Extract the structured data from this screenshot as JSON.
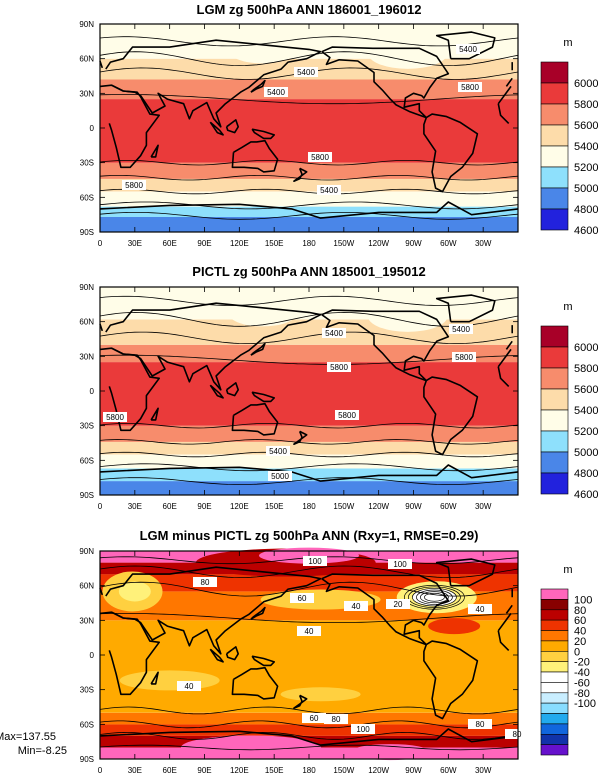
{
  "chart_data": [
    {
      "type": "heatmap",
      "title": "LGM zg 500hPa ANN 186001_196012",
      "xticks": [
        "0",
        "30E",
        "60E",
        "90E",
        "120E",
        "150E",
        "180",
        "150W",
        "120W",
        "90W",
        "60W",
        "30W"
      ],
      "yticks": [
        "90N",
        "60N",
        "30N",
        "0",
        "30S",
        "60S",
        "90S"
      ],
      "colorbar": {
        "unit": "m",
        "labels": [
          "6000",
          "5800",
          "5600",
          "5400",
          "5200",
          "5000",
          "4800",
          "4600"
        ]
      },
      "contour_labels": [
        "5400",
        "5400",
        "5800",
        "5800",
        "5800",
        "5400",
        "5400"
      ],
      "bands": [
        {
          "from": -90,
          "to": -77,
          "level": "4900-5000"
        },
        {
          "from": -77,
          "to": -68,
          "level": "5000-5200"
        },
        {
          "from": -68,
          "to": -55,
          "level": "5200-5400"
        },
        {
          "from": -55,
          "to": -44,
          "level": "5400-5600"
        },
        {
          "from": -44,
          "to": -30,
          "level": "5600-5800"
        },
        {
          "from": -30,
          "to": 25,
          "level": "5800-6000"
        },
        {
          "from": 25,
          "to": 42,
          "level": "5600-5800"
        },
        {
          "from": 42,
          "to": 60,
          "level": "5400-5600"
        },
        {
          "from": 60,
          "to": 90,
          "level": "5200-5400"
        }
      ]
    },
    {
      "type": "heatmap",
      "title": "PICTL zg 500hPa ANN 185001_195012",
      "xticks": [
        "0",
        "30E",
        "60E",
        "90E",
        "120E",
        "150E",
        "180",
        "150W",
        "120W",
        "90W",
        "60W",
        "30W"
      ],
      "yticks": [
        "90N",
        "60N",
        "30N",
        "0",
        "30S",
        "60S",
        "90S"
      ],
      "colorbar": {
        "unit": "m",
        "labels": [
          "6000",
          "5800",
          "5600",
          "5400",
          "5200",
          "5000",
          "4800",
          "4600"
        ]
      },
      "contour_labels": [
        "5400",
        "5400",
        "5800",
        "5800",
        "5800",
        "5800",
        "5400",
        "5000"
      ],
      "bands": [
        {
          "from": -90,
          "to": -78,
          "level": "4800-5000"
        },
        {
          "from": -78,
          "to": -67,
          "level": "5000-5200"
        },
        {
          "from": -67,
          "to": -55,
          "level": "5200-5400"
        },
        {
          "from": -55,
          "to": -44,
          "level": "5400-5600"
        },
        {
          "from": -44,
          "to": -30,
          "level": "5600-5800"
        },
        {
          "from": -30,
          "to": 25,
          "level": "5800-6000"
        },
        {
          "from": 25,
          "to": 40,
          "level": "5600-5800"
        },
        {
          "from": 40,
          "to": 62,
          "level": "5400-5600"
        },
        {
          "from": 62,
          "to": 90,
          "level": "5200-5400"
        }
      ]
    },
    {
      "type": "heatmap",
      "title": "LGM minus PICTL zg 500hPa ANN (Rxy=1, RMSE=0.29)",
      "xticks": [
        "0",
        "30E",
        "60E",
        "90E",
        "120E",
        "150E",
        "180",
        "150W",
        "120W",
        "90W",
        "60W",
        "30W"
      ],
      "yticks": [
        "90N",
        "60N",
        "30N",
        "0",
        "30S",
        "60S",
        "90S"
      ],
      "colorbar": {
        "unit": "m",
        "labels": [
          "100",
          "80",
          "60",
          "40",
          "20",
          "0",
          "-20",
          "-40",
          "-60",
          "-80",
          "-100"
        ]
      },
      "contour_labels": [
        "100",
        "100",
        "80",
        "60",
        "40",
        "20",
        "40",
        "40",
        "40",
        "60",
        "80",
        "100",
        "80",
        "80"
      ],
      "stats": {
        "max": "Max=137.55",
        "min": "Min=-8.25"
      },
      "bands": [
        {
          "from": -90,
          "to": -80,
          "level": "100-120"
        },
        {
          "from": -80,
          "to": -70,
          "level": "80-100"
        },
        {
          "from": -70,
          "to": -60,
          "level": "60-80"
        },
        {
          "from": -60,
          "to": -50,
          "level": "40-60"
        },
        {
          "from": -50,
          "to": 30,
          "level": "20-40"
        },
        {
          "from": 30,
          "to": 55,
          "level": "40-60"
        },
        {
          "from": 55,
          "to": 70,
          "level": "60-80"
        },
        {
          "from": 70,
          "to": 80,
          "level": "80-100"
        },
        {
          "from": 80,
          "to": 90,
          "level": "100-120"
        }
      ]
    }
  ],
  "colors": {
    "abs": [
      "#2222dd",
      "#4a86e8",
      "#8ee0fc",
      "#fffde8",
      "#fddcaa",
      "#f78c6c",
      "#ea3a3a",
      "#a80028"
    ],
    "diff": [
      "#6611cc",
      "#1133aa",
      "#1166dd",
      "#22aaee",
      "#88ddff",
      "#c9eeff",
      "#ffffff",
      "#ffffff",
      "#fff17a",
      "#ffd040",
      "#ffaa00",
      "#ff7700",
      "#ee3300",
      "#bb0000",
      "#880000",
      "#ff66bb"
    ]
  }
}
